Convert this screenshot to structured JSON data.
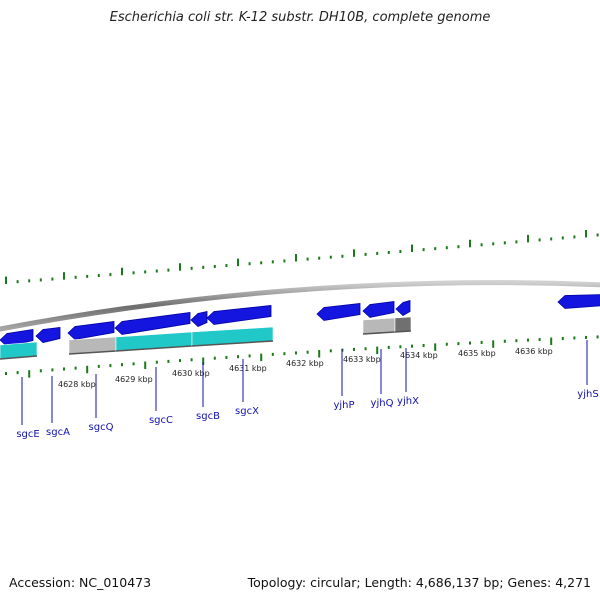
{
  "title": "Escherichia coli str. K-12 substr. DH10B, complete genome",
  "footer": {
    "accession": "Accession: NC_010473",
    "summary": "Topology: circular; Length: 4,686,137 bp; Genes: 4,271"
  },
  "colors": {
    "gene_forward": "#1515e0",
    "gene_forward_dark": "#0000a0",
    "cds_cyan": "#20c8c8",
    "cds_grey": "#b8b8b8",
    "cds_dark_grey": "#707070",
    "tick_green": "#1a7a1a",
    "label_blue": "#1010b0"
  },
  "kbp_labels": [
    "4628 kbp",
    "4629 kbp",
    "4630 kbp",
    "4631 kbp",
    "4632 kbp",
    "4633 kbp",
    "4634 kbp",
    "4635 kbp",
    "4636 kbp"
  ],
  "genes": [
    "sgcE",
    "sgcA",
    "sgcQ",
    "sgcC",
    "sgcB",
    "sgcX",
    "yjhP",
    "yjhQ",
    "yjhX",
    "yjhS"
  ]
}
